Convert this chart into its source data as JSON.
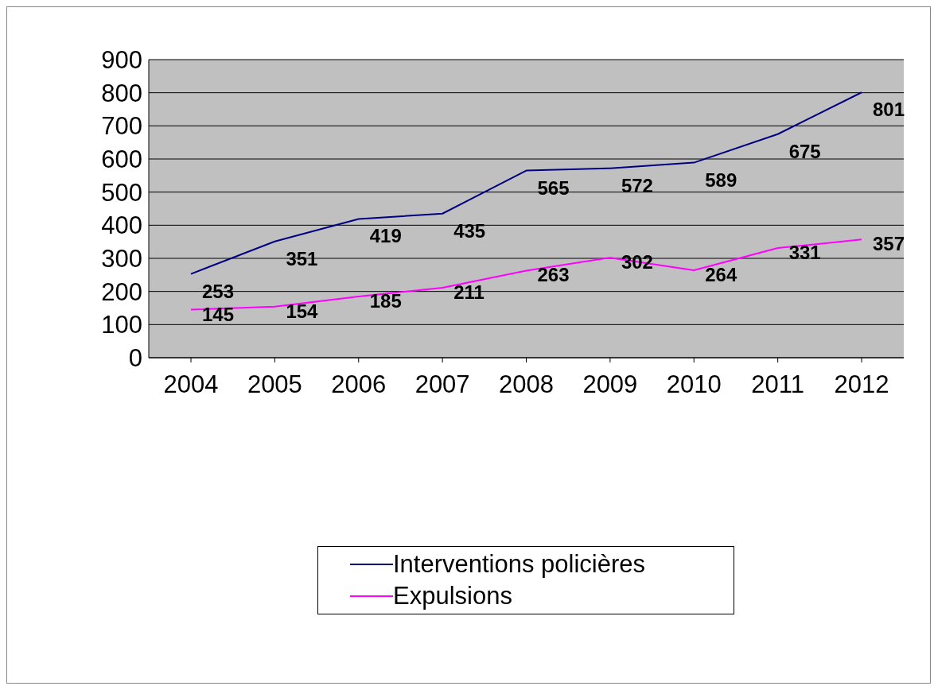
{
  "chart_data": {
    "type": "line",
    "categories": [
      "2004",
      "2005",
      "2006",
      "2007",
      "2008",
      "2009",
      "2010",
      "2011",
      "2012"
    ],
    "series": [
      {
        "name": "Interventions policières",
        "color": "#000080",
        "values": [
          253,
          351,
          419,
          435,
          565,
          572,
          589,
          675,
          801
        ]
      },
      {
        "name": "Expulsions",
        "color": "#ff00ff",
        "values": [
          145,
          154,
          185,
          211,
          263,
          302,
          264,
          331,
          357
        ]
      }
    ],
    "ylim": [
      0,
      900
    ],
    "yticks": [
      0,
      100,
      200,
      300,
      400,
      500,
      600,
      700,
      800,
      900
    ],
    "grid": "y",
    "legend": "bottom",
    "marker": "none",
    "line_style": "solid",
    "data_labels": true
  }
}
